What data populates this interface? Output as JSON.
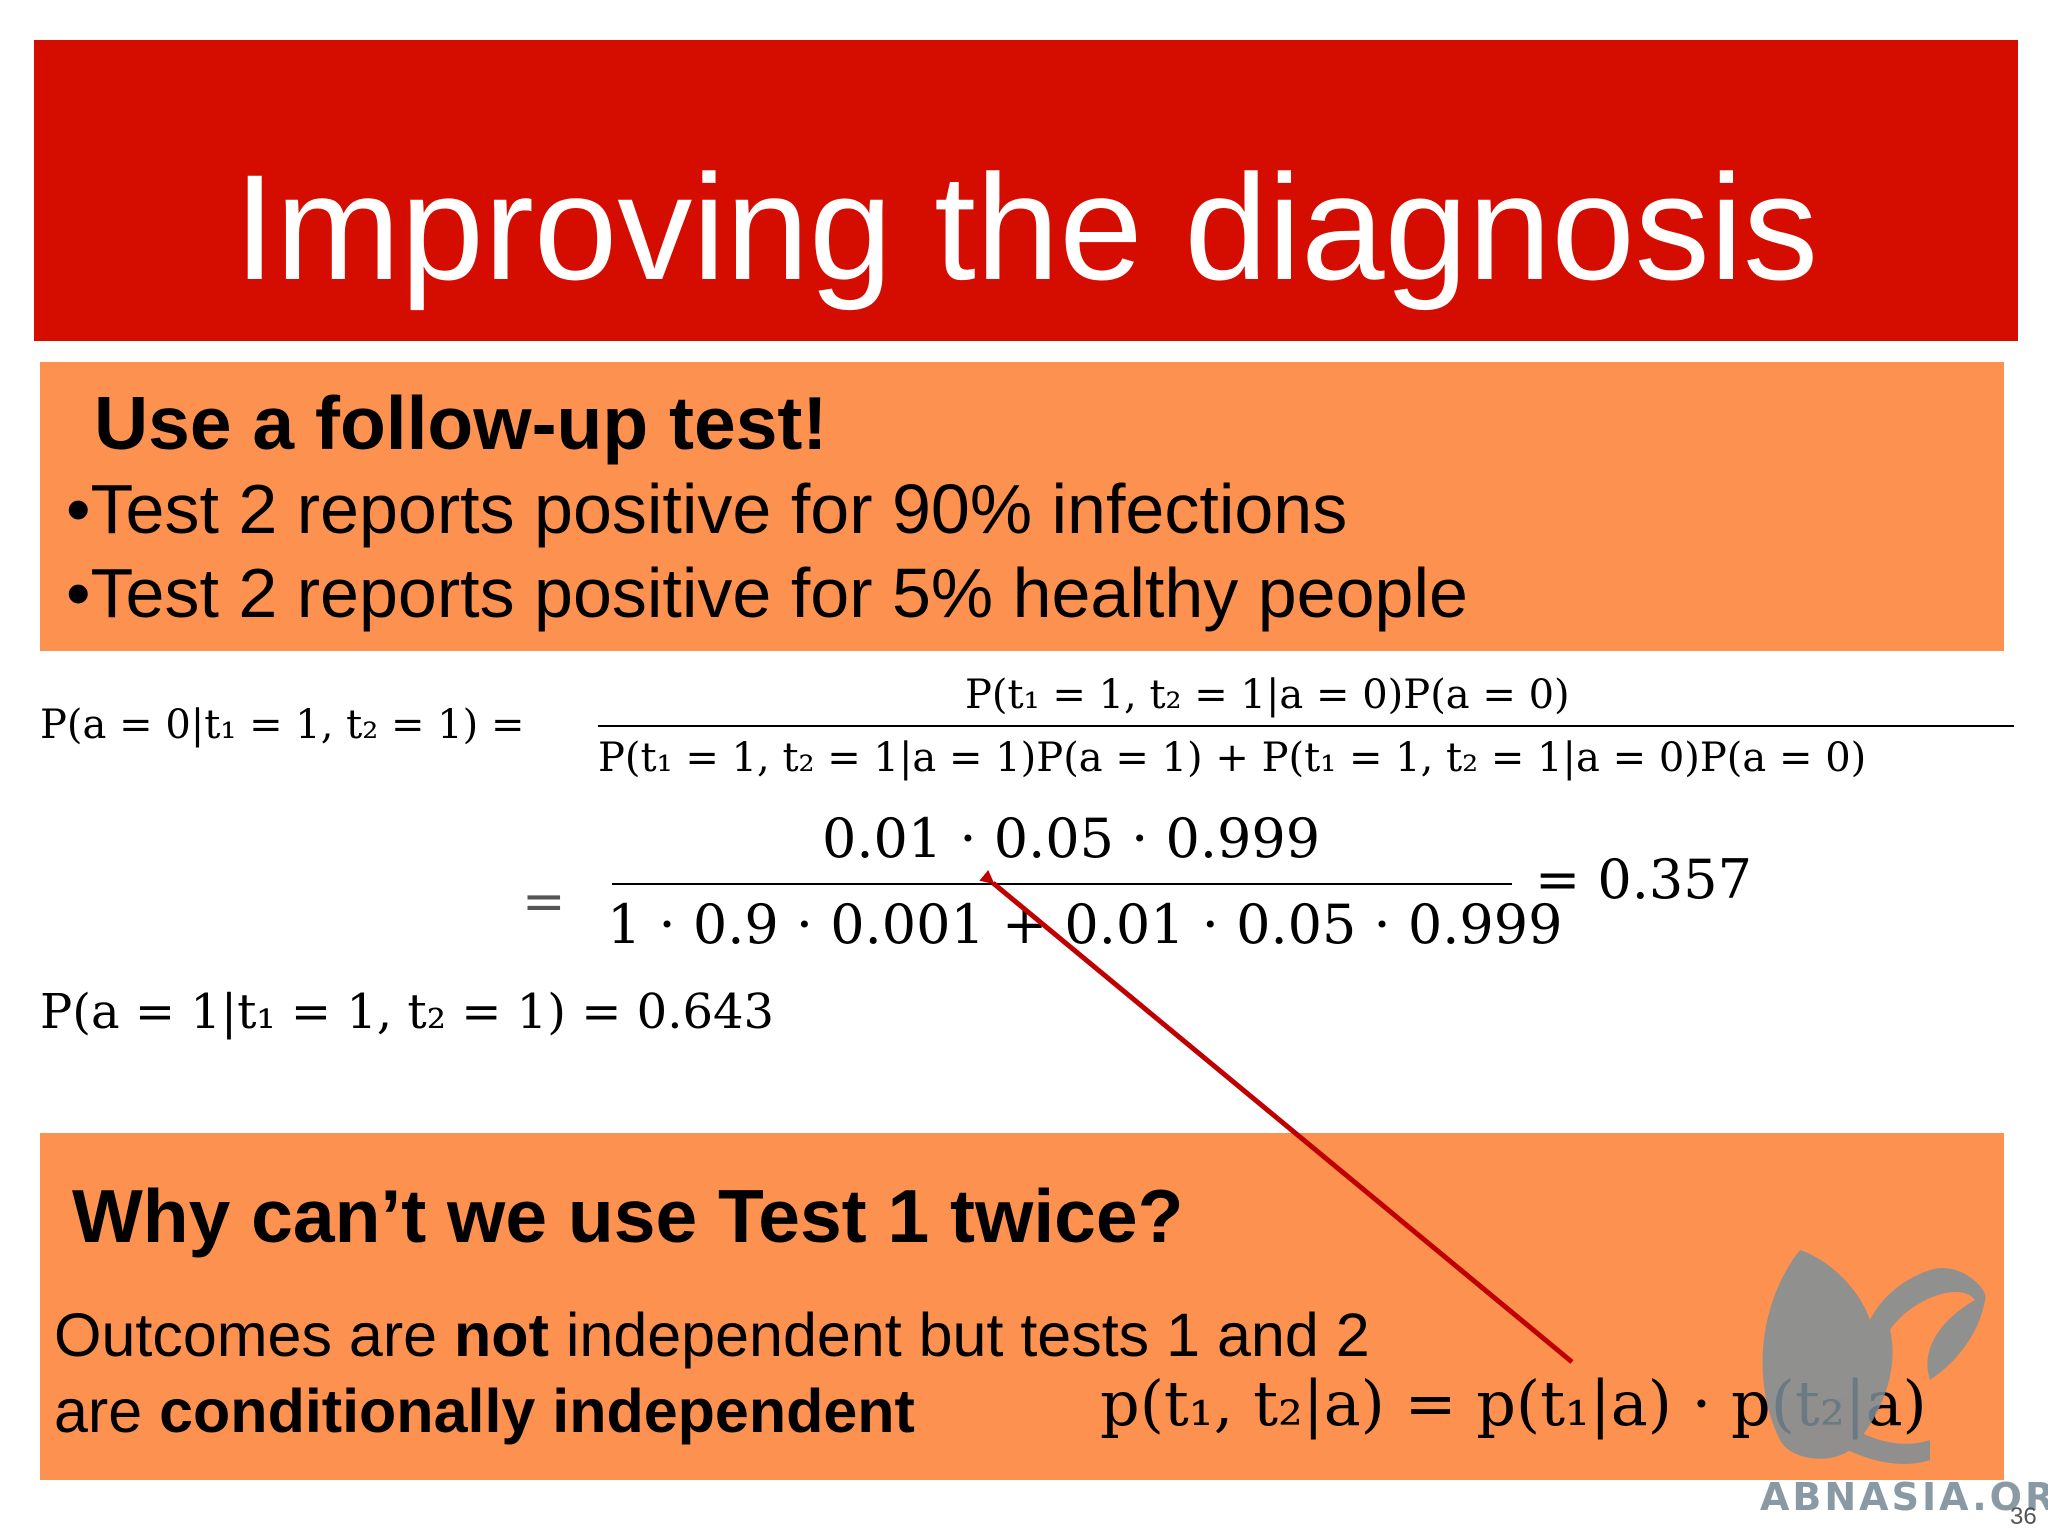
{
  "title": "Improving the diagnosis",
  "box1": {
    "heading": "Use a follow-up test!",
    "bullets": [
      "•Test 2 reports positive for 90% infections",
      "•Test 2 reports positive for 5% healthy people"
    ]
  },
  "equations": {
    "lhs": "P(a = 0|t₁ = 1, t₂ = 1) =",
    "numerator": "P(t₁ = 1, t₂ = 1|a = 0)P(a = 0)",
    "denominator": "P(t₁ = 1, t₂ = 1|a = 1)P(a = 1) + P(t₁ = 1, t₂ = 1|a = 0)P(a = 0)",
    "eq_sign": "=",
    "numeric_numerator": "0.01 · 0.05 · 0.999",
    "numeric_denominator": "1 · 0.9 · 0.001 + 0.01 · 0.05 · 0.999",
    "result": "= 0.357",
    "second_line": "P(a = 1|t₁ = 1, t₂ = 1) = 0.643"
  },
  "box2": {
    "heading": "Why can’t we use Test 1 twice?",
    "line1_part1": "Outcomes are ",
    "line1_bold": "not",
    "line1_part2": " independent but tests 1 and 2",
    "line2_part1": " are ",
    "line2_bold": "conditionally independent",
    "formula": "p(t₁, t₂|a) = p(t₁|a) · p(t₂|a)"
  },
  "watermark": "ABNASIA.ORG",
  "page_number": "36",
  "colors": {
    "title_bg": "#d50c00",
    "box_bg": "#fd9150",
    "arrow": "#c00000"
  }
}
